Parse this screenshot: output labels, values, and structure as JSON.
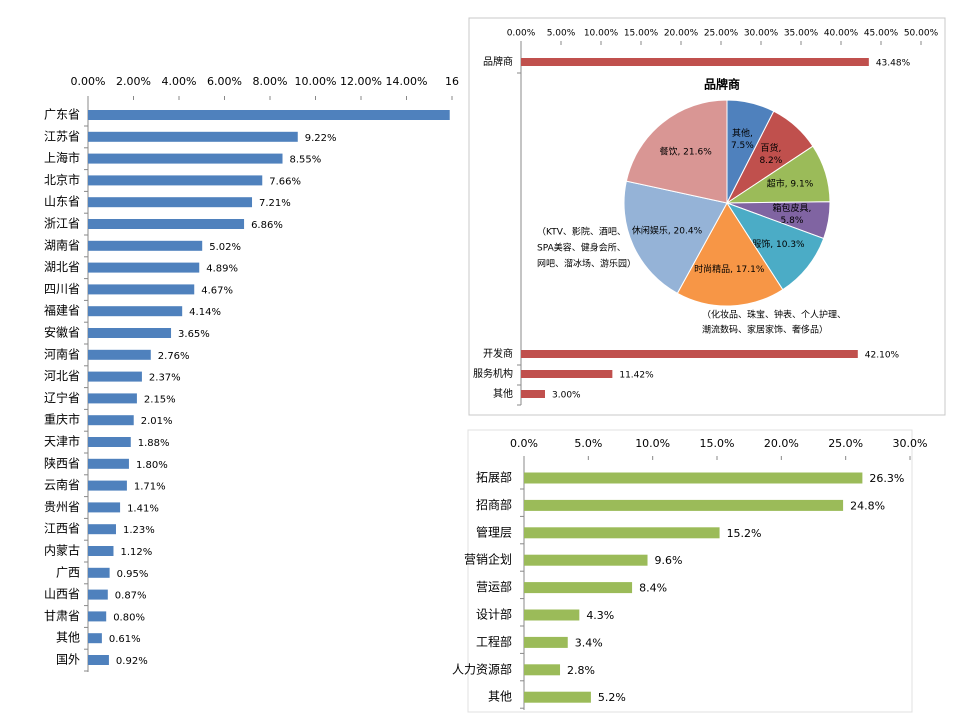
{
  "chart_data": [
    {
      "type": "hbar",
      "color": "#4f81bd",
      "categories": [
        "广东省",
        "江苏省",
        "上海市",
        "北京市",
        "山东省",
        "浙江省",
        "湖南省",
        "湖北省",
        "四川省",
        "福建省",
        "安徽省",
        "河南省",
        "河北省",
        "辽宁省",
        "重庆市",
        "天津市",
        "陕西省",
        "云南省",
        "贵州省",
        "江西省",
        "内蒙古",
        "广西",
        "山西省",
        "甘肃省",
        "其他",
        "国外"
      ],
      "values": [
        15.9,
        9.22,
        8.55,
        7.66,
        7.21,
        6.86,
        5.02,
        4.89,
        4.67,
        4.14,
        3.65,
        2.76,
        2.37,
        2.15,
        2.01,
        1.88,
        1.8,
        1.71,
        1.41,
        1.23,
        1.12,
        0.95,
        0.87,
        0.8,
        0.61,
        0.92
      ],
      "value_labels": [
        null,
        "9.22%",
        "8.55%",
        "7.66%",
        "7.21%",
        "6.86%",
        "5.02%",
        "4.89%",
        "4.67%",
        "4.14%",
        "3.65%",
        "2.76%",
        "2.37%",
        "2.15%",
        "2.01%",
        "1.88%",
        "1.80%",
        "1.71%",
        "1.41%",
        "1.23%",
        "1.12%",
        "0.95%",
        "0.87%",
        "0.80%",
        "0.61%",
        "0.92%"
      ],
      "xlim": [
        0,
        16
      ],
      "xticks": [
        {
          "value": 0,
          "label": "0.00%"
        },
        {
          "value": 2,
          "label": "2.00%"
        },
        {
          "value": 4,
          "label": "4.00%"
        },
        {
          "value": 6,
          "label": "6.00%"
        },
        {
          "value": 8,
          "label": "8.00%"
        },
        {
          "value": 10,
          "label": "10.00%"
        },
        {
          "value": 12,
          "label": "12.00%"
        },
        {
          "value": 14,
          "label": "14.00%"
        },
        16
      ]
    },
    {
      "type": "hbar",
      "color": "#c0504d",
      "categories": [
        "品牌商",
        "开发商",
        "服务机构",
        "其他"
      ],
      "values": [
        43.48,
        42.1,
        11.42,
        3.0
      ],
      "value_labels": [
        "43.48%",
        "42.10%",
        "11.42%",
        "3.00%"
      ],
      "xlim": [
        0,
        50
      ],
      "xticks": [
        {
          "value": 0,
          "label": "0.00%"
        },
        {
          "value": 5,
          "label": "5.00%"
        },
        {
          "value": 10,
          "label": "10.00%"
        },
        {
          "value": 15,
          "label": "15.00%"
        },
        {
          "value": 20,
          "label": "20.00%"
        },
        {
          "value": 25,
          "label": "25.00%"
        },
        {
          "value": 30,
          "label": "30.00%"
        },
        {
          "value": 35,
          "label": "35.00%"
        },
        {
          "value": 40,
          "label": "40.00%"
        },
        {
          "value": 45,
          "label": "45.00%"
        },
        {
          "value": 50,
          "label": "50.00%"
        }
      ]
    },
    {
      "type": "pie",
      "title": "品牌商",
      "values": [
        7.5,
        8.2,
        9.1,
        5.8,
        10.3,
        17.1,
        20.4,
        21.6
      ],
      "value_labels": [
        "其他,\n7.5%",
        "百货,\n8.2%",
        "超市, 9.1%",
        "箱包皮具,\n5.8%",
        "服饰, 10.3%",
        "时尚精品, 17.1%",
        "休闲娱乐, 20.4%",
        "餐饮, 21.6%"
      ],
      "colors": [
        "#4f81bd",
        "#c0504d",
        "#9bbb59",
        "#8064a2",
        "#4bacc6",
        "#f79646",
        "#95b3d7",
        "#d99694"
      ],
      "annotations": [
        [
          "（KTV、影院、酒吧、",
          "SPA美容、健身会所、",
          "网吧、溜冰场、游乐园）"
        ],
        [
          "（化妆品、珠宝、钟表、个人护理、",
          "潮流数码、家居家饰、奢侈品）"
        ]
      ]
    },
    {
      "type": "hbar",
      "color": "#9bbb59",
      "categories": [
        "拓展部",
        "招商部",
        "管理层",
        "营销企划",
        "营运部",
        "设计部",
        "工程部",
        "人力资源部",
        "其他"
      ],
      "values": [
        26.3,
        24.8,
        15.2,
        9.6,
        8.4,
        4.3,
        3.4,
        2.8,
        5.2
      ],
      "value_labels": [
        "26.3%",
        "24.8%",
        "15.2%",
        "9.6%",
        "8.4%",
        "4.3%",
        "3.4%",
        "2.8%",
        "5.2%"
      ],
      "xlim": [
        0,
        30
      ],
      "xticks": [
        {
          "value": 0,
          "label": "0.0%"
        },
        {
          "value": 5,
          "label": "5.0%"
        },
        {
          "value": 10,
          "label": "10.0%"
        },
        {
          "value": 15,
          "label": "15.0%"
        },
        {
          "value": 20,
          "label": "20.0%"
        },
        {
          "value": 25,
          "label": "25.0%"
        },
        {
          "value": 30,
          "label": "30.0%"
        }
      ]
    }
  ]
}
